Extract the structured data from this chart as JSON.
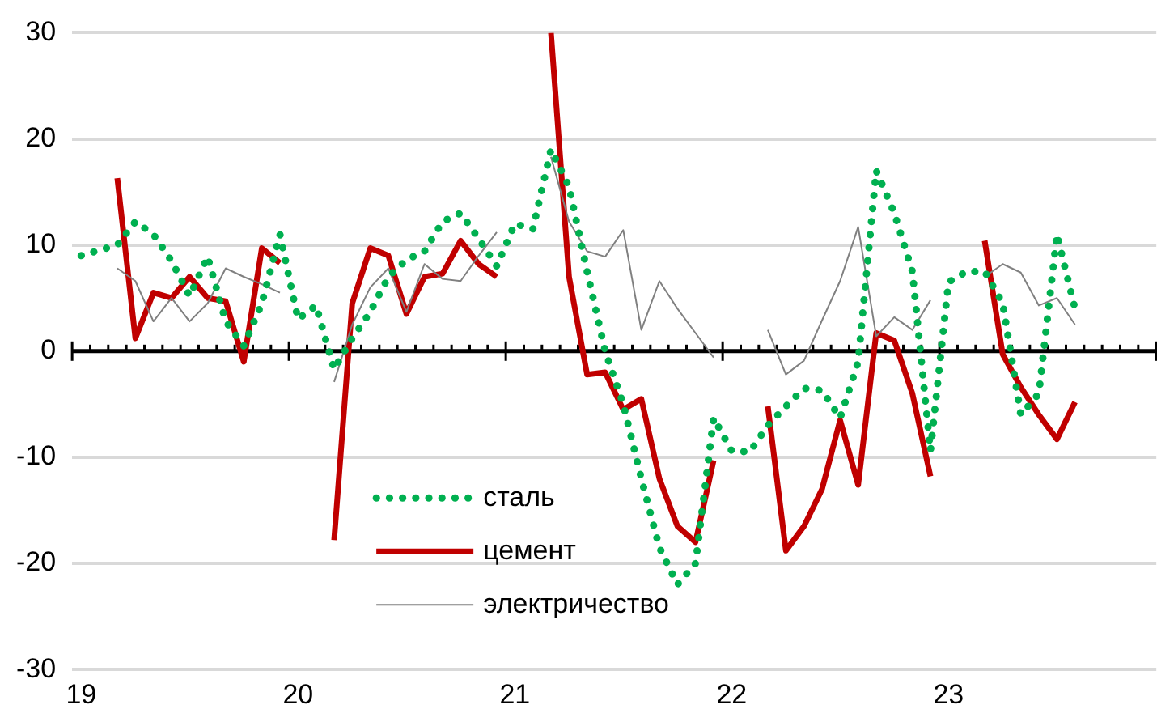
{
  "chart_data": {
    "type": "line",
    "categories": [
      "19",
      null,
      null,
      null,
      null,
      null,
      null,
      null,
      null,
      null,
      null,
      null,
      "20",
      null,
      null,
      null,
      null,
      null,
      null,
      null,
      null,
      null,
      null,
      null,
      "21",
      null,
      null,
      null,
      null,
      null,
      null,
      null,
      null,
      null,
      null,
      null,
      "22",
      null,
      null,
      null,
      null,
      null,
      null,
      null,
      null,
      null,
      null,
      null,
      "23",
      null,
      null,
      null,
      null,
      null,
      null,
      null,
      null,
      null,
      null,
      null
    ],
    "series": [
      {
        "name": "сталь",
        "color": "#00b050",
        "line_style": "dotted",
        "values": [
          9,
          9.5,
          10,
          12.2,
          11,
          8.5,
          5.2,
          8.9,
          2.8,
          0.5,
          4.5,
          11,
          3,
          4.3,
          -1.7,
          1.2,
          3.7,
          7,
          8.6,
          9.4,
          12.2,
          13,
          10.6,
          8,
          12,
          11.5,
          19,
          15.5,
          7.5,
          0,
          -5,
          -12,
          -18.5,
          -22,
          -20,
          -6.3,
          -9.4,
          -9.5,
          -7,
          -5.2,
          -3.5,
          -3.7,
          -6.3,
          -1,
          17,
          13,
          7.5,
          -9.4,
          6.5,
          7.5,
          7.5,
          4.5,
          -6,
          -4,
          11,
          4,
          null,
          null,
          null,
          null
        ]
      },
      {
        "name": "цемент",
        "color": "#c00000",
        "line_style": "solid",
        "values": [
          null,
          null,
          16.3,
          1.2,
          5.5,
          5,
          7,
          5,
          4.7,
          -1,
          9.7,
          8.3,
          null,
          null,
          -17.8,
          4.5,
          9.7,
          9,
          3.5,
          7,
          7.3,
          10.4,
          8.2,
          7,
          null,
          null,
          30,
          7,
          -2.2,
          -2,
          -5.5,
          -4.5,
          -12,
          -16.5,
          -18,
          -10.3,
          null,
          null,
          -5.2,
          -18.8,
          -16.5,
          -13,
          -6.5,
          -12.6,
          1.7,
          1,
          -4,
          -11.8,
          null,
          null,
          10.4,
          -0.3,
          -3.4,
          -6,
          -8.3,
          -4.8,
          null,
          null,
          null,
          null
        ]
      },
      {
        "name": "электричество",
        "color": "#808080",
        "line_style": "solid",
        "values": [
          null,
          null,
          7.8,
          6.6,
          2.8,
          5,
          2.8,
          4.5,
          7.8,
          7,
          6.3,
          5.5,
          null,
          null,
          -2.9,
          2.5,
          6,
          7.8,
          3.7,
          8.2,
          6.8,
          6.6,
          9,
          11.2,
          null,
          null,
          18.3,
          12.2,
          9.4,
          8.9,
          11.4,
          2,
          6.6,
          4,
          1.7,
          -0.6,
          null,
          null,
          2,
          -2.2,
          -0.9,
          2.9,
          6.6,
          11.7,
          1.4,
          3.2,
          2,
          4.8,
          null,
          null,
          7,
          8.2,
          7.4,
          4.3,
          5,
          2.5,
          null,
          null,
          null,
          null
        ]
      }
    ],
    "ylim": [
      -30,
      30
    ],
    "yticks": [
      -30,
      -20,
      -10,
      0,
      10,
      20,
      30
    ],
    "grid": "y",
    "legend": "bottom",
    "marker": "none",
    "ref_lines": [
      {
        "axis": "y",
        "value": 0,
        "color": "#000000"
      }
    ]
  }
}
